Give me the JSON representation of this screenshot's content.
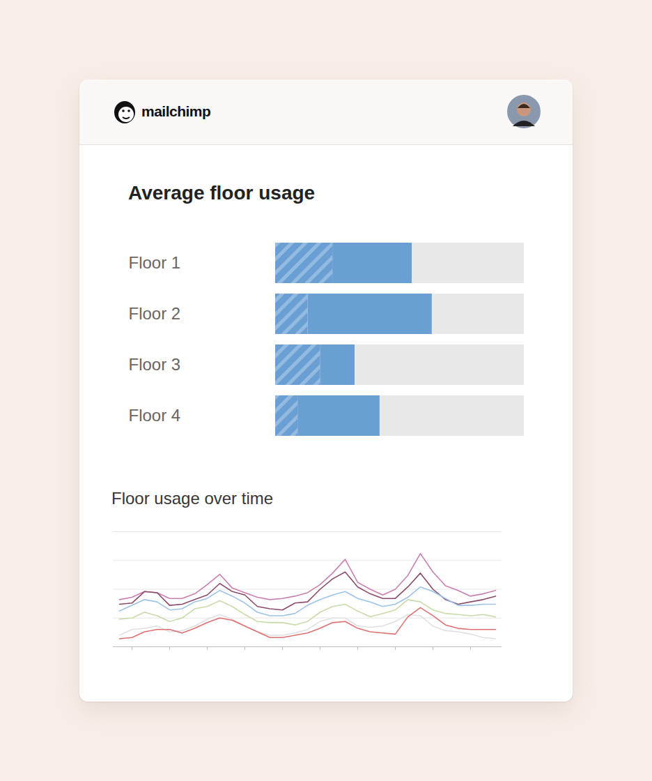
{
  "header": {
    "brand": "mailchimp"
  },
  "chart_data": [
    {
      "type": "bar",
      "title": "Average floor usage",
      "orientation": "horizontal",
      "stacked": true,
      "categories": [
        "Floor 1",
        "Floor 2",
        "Floor 3",
        "Floor 4"
      ],
      "series": [
        {
          "color": "#6a9fd4",
          "values": [
            23,
            13,
            18,
            9
          ]
        },
        {
          "color": "#6a9fd4",
          "values": [
            32,
            50,
            14,
            33
          ]
        },
        {
          "color": "#e8e8e8",
          "values": [
            45,
            37,
            68,
            58
          ]
        }
      ],
      "xlim": [
        0,
        100
      ],
      "tick_labels": "y"
    },
    {
      "type": "line",
      "title": "Floor usage over time",
      "categories": [
        null,
        null,
        null,
        null,
        null,
        null,
        null,
        null,
        null,
        null,
        null,
        null,
        null,
        null,
        null,
        null,
        null,
        null,
        null,
        null,
        null,
        null,
        null,
        null,
        null,
        null,
        null,
        null,
        null,
        null,
        null
      ],
      "series": [
        {
          "color": "#c97fb0",
          "values": [
            41,
            43,
            48,
            47,
            42,
            42,
            46,
            54,
            63,
            51,
            47,
            43,
            41,
            42,
            44,
            47,
            54,
            64,
            76,
            56,
            50,
            45,
            50,
            62,
            81,
            65,
            53,
            49,
            44,
            46,
            49
          ]
        },
        {
          "color": "#8b4a6b",
          "values": [
            37,
            38,
            48,
            47,
            36,
            37,
            41,
            45,
            55,
            48,
            45,
            35,
            33,
            32,
            38,
            39,
            50,
            59,
            65,
            52,
            46,
            42,
            42,
            52,
            64,
            50,
            41,
            37,
            39,
            41,
            44
          ]
        },
        {
          "color": "#9cc3e8",
          "values": [
            31,
            36,
            41,
            39,
            32,
            33,
            39,
            42,
            49,
            44,
            38,
            30,
            27,
            27,
            29,
            36,
            41,
            45,
            48,
            42,
            39,
            35,
            37,
            43,
            52,
            48,
            42,
            36,
            36,
            37,
            37
          ]
        },
        {
          "color": "#c8dba8",
          "values": [
            24,
            25,
            30,
            27,
            22,
            25,
            33,
            35,
            40,
            35,
            28,
            22,
            21,
            21,
            19,
            22,
            30,
            35,
            37,
            31,
            26,
            29,
            32,
            41,
            39,
            32,
            29,
            28,
            27,
            28,
            26
          ]
        },
        {
          "color": "#e0e0e0",
          "values": [
            10,
            15,
            16,
            18,
            13,
            14,
            18,
            24,
            28,
            24,
            18,
            13,
            10,
            10,
            12,
            15,
            22,
            25,
            25,
            18,
            17,
            18,
            22,
            28,
            27,
            18,
            14,
            13,
            11,
            8,
            7
          ]
        },
        {
          "color": "#e07070",
          "values": [
            7,
            8,
            13,
            15,
            15,
            12,
            16,
            21,
            25,
            23,
            18,
            13,
            8,
            8,
            10,
            12,
            16,
            21,
            22,
            16,
            13,
            12,
            11,
            26,
            34,
            27,
            19,
            16,
            15,
            15,
            15
          ]
        }
      ],
      "ylim": [
        0,
        100
      ],
      "yticks": [
        0,
        25,
        50,
        75,
        100
      ],
      "grid": true,
      "tick_labels": false
    }
  ]
}
